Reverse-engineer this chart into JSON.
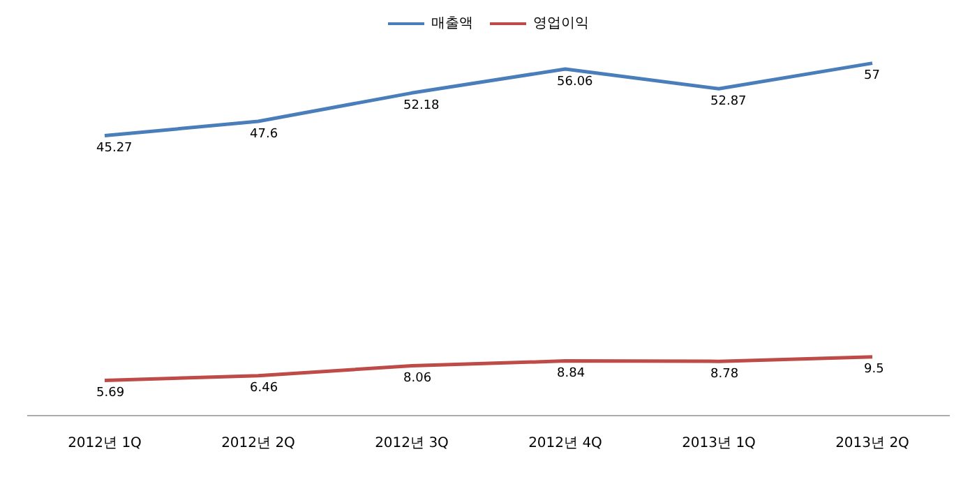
{
  "chart_data": {
    "type": "line",
    "categories": [
      "2012년 1Q",
      "2012년 2Q",
      "2012년 3Q",
      "2012년 4Q",
      "2013년 1Q",
      "2013년 2Q"
    ],
    "series": [
      {
        "name": "매출액",
        "color": "#4a7ebb",
        "values": [
          45.27,
          47.6,
          52.18,
          56.06,
          52.87,
          57
        ]
      },
      {
        "name": "영업이익",
        "color": "#be4b48",
        "values": [
          5.69,
          6.46,
          8.06,
          8.84,
          8.78,
          9.5
        ]
      }
    ],
    "data_labels": true,
    "legend": "top",
    "grid": false,
    "marker": "none",
    "line_style": "solid"
  }
}
